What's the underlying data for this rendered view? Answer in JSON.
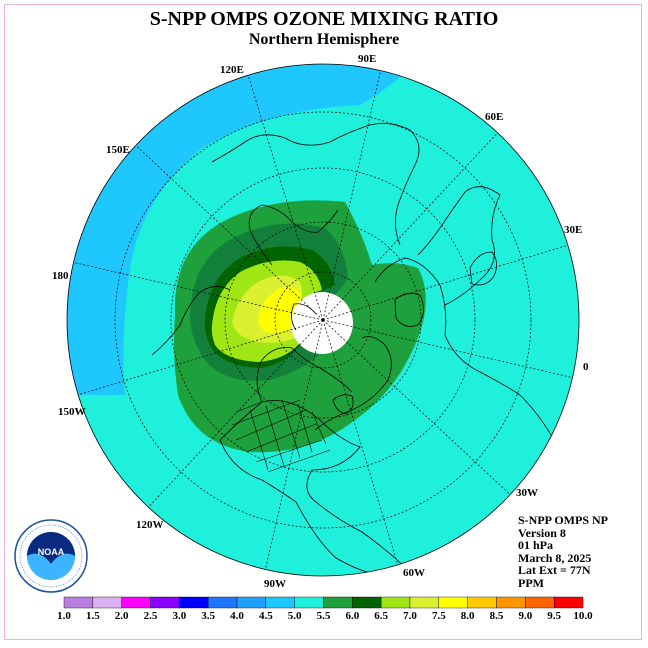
{
  "title": "S-NPP OMPS OZONE MIXING RATIO",
  "subtitle": "Northern Hemisphere",
  "info": {
    "product": "S-NPP OMPS NP",
    "version": "Version 8",
    "level": "01 hPa",
    "date": "March 8, 2025",
    "lat_ext": "Lat Ext = 77N",
    "units": "PPM"
  },
  "longitude_labels": [
    "90E",
    "60E",
    "30E",
    "0",
    "30W",
    "60W",
    "90W",
    "120W",
    "150W",
    "180",
    "150E",
    "120E"
  ],
  "logo_text": "NOAA",
  "colorbar": {
    "ticks": [
      "1.0",
      "1.5",
      "2.0",
      "2.5",
      "3.0",
      "3.5",
      "4.0",
      "4.5",
      "5.0",
      "5.5",
      "6.0",
      "6.5",
      "7.0",
      "7.5",
      "8.0",
      "8.5",
      "9.0",
      "9.5",
      "10.0"
    ],
    "colors": [
      "#b87ee0",
      "#dab0f0",
      "#ff00ff",
      "#8a00ff",
      "#0000ff",
      "#1e78ff",
      "#1ea0ff",
      "#1ec8ff",
      "#1ef0dc",
      "#1ea03c",
      "#006400",
      "#a0e614",
      "#dcf032",
      "#ffff00",
      "#ffc800",
      "#ff9600",
      "#ff6400",
      "#ff0000",
      "#a05a3c"
    ]
  },
  "colors": {
    "band_4_0": "#1ec8ff",
    "band_4_5": "#1ef0dc",
    "band_5_0": "#1ea03c",
    "band_5_5": "#12803a",
    "band_6_0": "#006400",
    "band_6_5": "#a0e614",
    "band_7_0": "#dcf032",
    "band_7_5": "#ffff00",
    "missing": "#ffffff"
  }
}
